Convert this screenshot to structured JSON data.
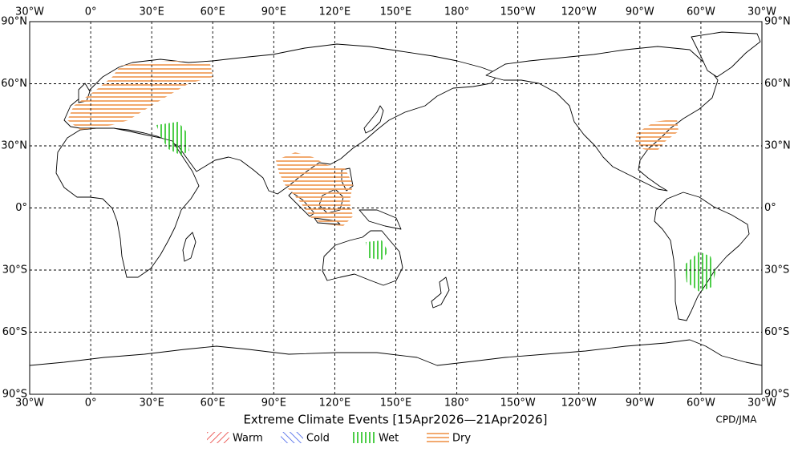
{
  "map": {
    "title": "Extreme Climate Events [15Apr2026—21Apr2026]",
    "credit": "CPD/JMA",
    "lon_labels": [
      "30°W",
      "0°",
      "30°E",
      "60°E",
      "90°E",
      "120°E",
      "150°E",
      "180°",
      "150°W",
      "120°W",
      "90°W",
      "60°W",
      "30°W"
    ],
    "lat_labels": [
      "90°N",
      "60°N",
      "30°N",
      "0°",
      "30°S",
      "60°S",
      "90°S"
    ],
    "legend": [
      "Warm",
      "Cold",
      "Wet",
      "Dry"
    ]
  }
}
